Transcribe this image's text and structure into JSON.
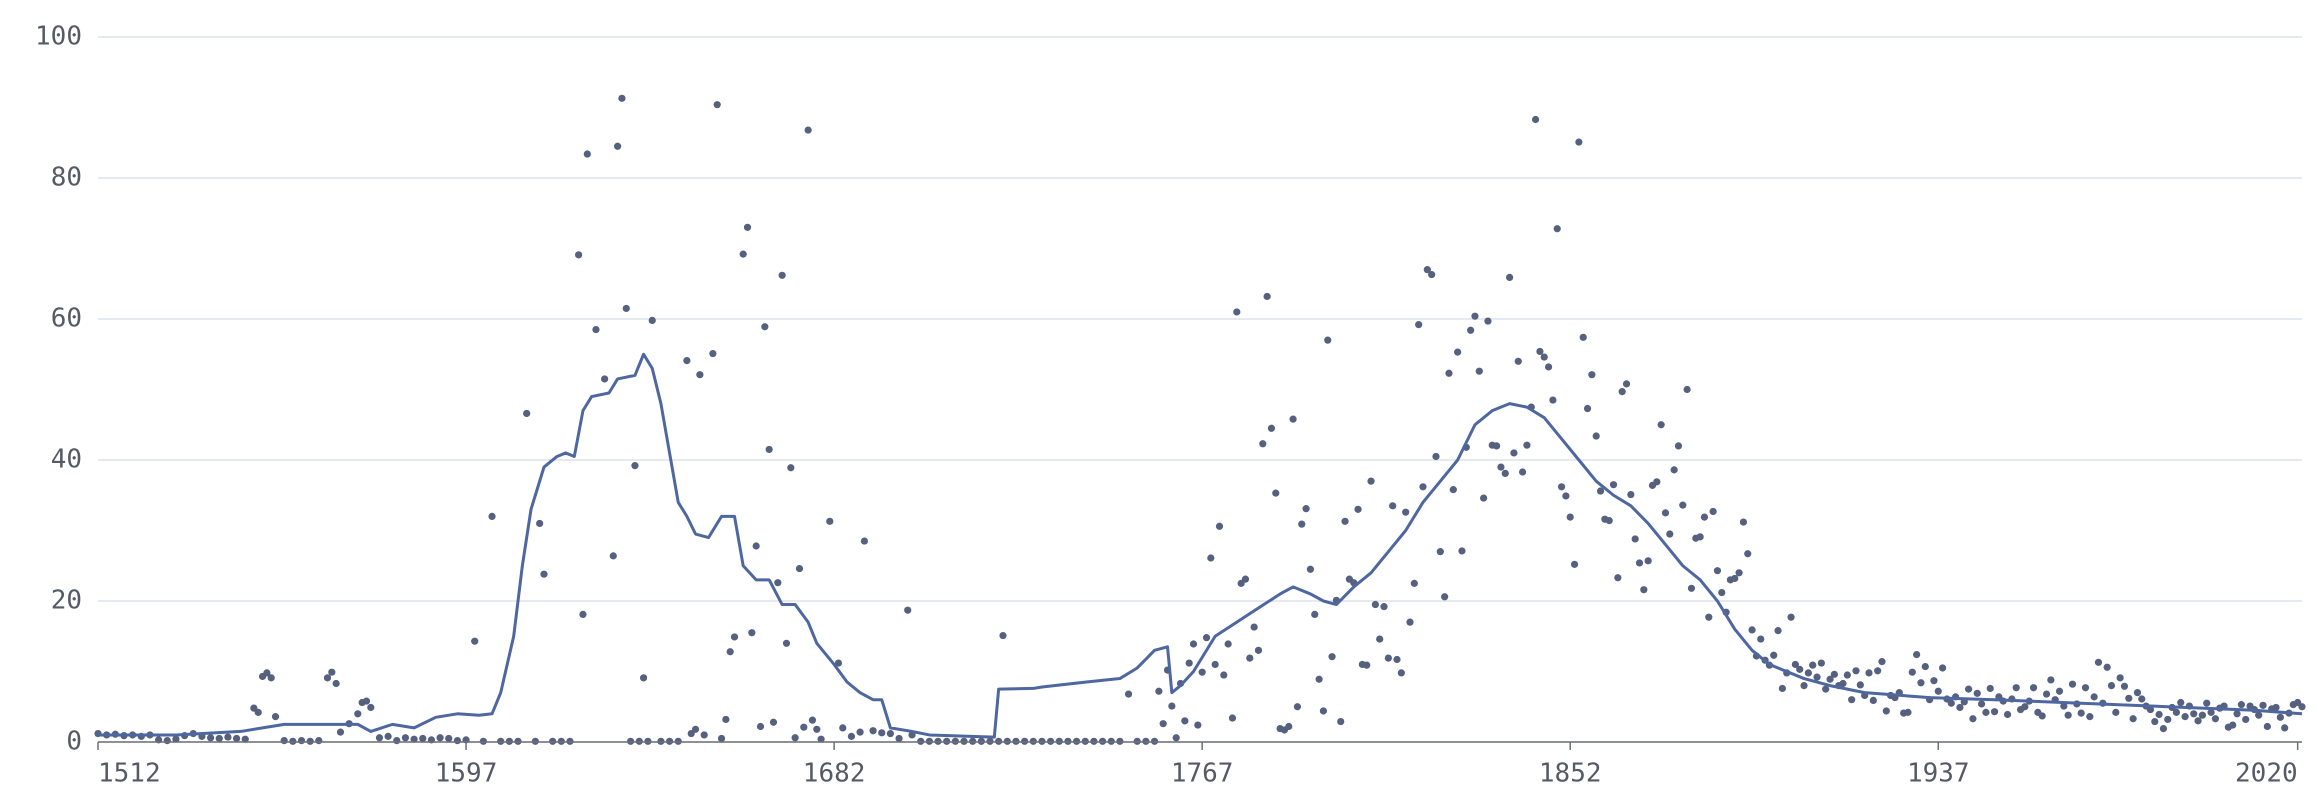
{
  "chart_data": [
    {
      "type": "scatter",
      "color": "#55617f",
      "xlim": [
        1512,
        2021
      ],
      "ylim": [
        0,
        100
      ],
      "xticks": [
        1512,
        1597,
        1682,
        1767,
        1852,
        1937,
        2020
      ],
      "yticks": [
        0,
        20,
        40,
        60,
        80,
        100
      ],
      "grid": true,
      "x": [
        1512,
        1514,
        1516,
        1518,
        1520,
        1522,
        1524,
        1526,
        1528,
        1530,
        1532,
        1534,
        1536,
        1538,
        1540,
        1542,
        1544,
        1546,
        1548,
        1549,
        1550,
        1551,
        1552,
        1553,
        1555,
        1557,
        1559,
        1561,
        1563,
        1565,
        1566,
        1567,
        1568,
        1570,
        1572,
        1573,
        1574,
        1575,
        1577,
        1579,
        1581,
        1583,
        1585,
        1587,
        1589,
        1591,
        1593,
        1595,
        1597,
        1599,
        1601,
        1603,
        1605,
        1607,
        1609,
        1611,
        1613,
        1614,
        1615,
        1617,
        1619,
        1621,
        1623,
        1624,
        1625,
        1627,
        1629,
        1631,
        1632,
        1633,
        1634,
        1635,
        1636,
        1637,
        1638,
        1639,
        1640,
        1642,
        1644,
        1646,
        1648,
        1649,
        1650,
        1651,
        1652,
        1654,
        1655,
        1656,
        1657,
        1658,
        1659,
        1661,
        1662,
        1663,
        1664,
        1665,
        1666,
        1667,
        1668,
        1669,
        1670,
        1671,
        1672,
        1673,
        1674,
        1675,
        1676,
        1677,
        1678,
        1679,
        1681,
        1683,
        1684,
        1686,
        1688,
        1689,
        1691,
        1693,
        1695,
        1697,
        1699,
        1700,
        1702,
        1704,
        1706,
        1708,
        1710,
        1712,
        1714,
        1716,
        1718,
        1720,
        1721,
        1722,
        1724,
        1726,
        1728,
        1730,
        1732,
        1734,
        1736,
        1738,
        1740,
        1742,
        1744,
        1746,
        1748,
        1750,
        1752,
        1754,
        1756,
        1757,
        1758,
        1759,
        1760,
        1761,
        1762,
        1763,
        1764,
        1765,
        1766,
        1767,
        1768,
        1769,
        1770,
        1771,
        1772,
        1773,
        1774,
        1775,
        1776,
        1777,
        1778,
        1779,
        1780,
        1781,
        1782,
        1783,
        1784,
        1785,
        1786,
        1787,
        1788,
        1789,
        1790,
        1791,
        1792,
        1793,
        1794,
        1795,
        1796,
        1797,
        1798,
        1799,
        1800,
        1801,
        1802,
        1803,
        1804,
        1805,
        1806,
        1807,
        1808,
        1809,
        1810,
        1811,
        1812,
        1813,
        1814,
        1815,
        1816,
        1817,
        1818,
        1819,
        1820,
        1821,
        1822,
        1823,
        1824,
        1825,
        1826,
        1827,
        1828,
        1829,
        1830,
        1831,
        1832,
        1833,
        1834,
        1835,
        1836,
        1837,
        1838,
        1839,
        1840,
        1841,
        1842,
        1843,
        1844,
        1845,
        1846,
        1847,
        1848,
        1849,
        1850,
        1851,
        1852,
        1853,
        1854,
        1855,
        1856,
        1857,
        1858,
        1859,
        1860,
        1861,
        1862,
        1863,
        1864,
        1865,
        1866,
        1867,
        1868,
        1869,
        1870,
        1871,
        1872,
        1873,
        1874,
        1875,
        1876,
        1877,
        1878,
        1879,
        1880,
        1881,
        1882,
        1883,
        1884,
        1885,
        1886,
        1887,
        1888,
        1889,
        1890,
        1891,
        1892,
        1893,
        1894,
        1895,
        1896,
        1897,
        1898,
        1899,
        1900,
        1901,
        1902,
        1903,
        1904,
        1905,
        1906,
        1907,
        1908,
        1909,
        1910,
        1911,
        1912,
        1913,
        1914,
        1915,
        1916,
        1917,
        1918,
        1919,
        1920,
        1921,
        1922,
        1923,
        1924,
        1925,
        1926,
        1927,
        1928,
        1929,
        1930,
        1931,
        1932,
        1933,
        1934,
        1935,
        1936,
        1937,
        1938,
        1939,
        1940,
        1941,
        1942,
        1943,
        1944,
        1945,
        1946,
        1947,
        1948,
        1949,
        1950,
        1951,
        1952,
        1953,
        1954,
        1955,
        1956,
        1957,
        1958,
        1959,
        1960,
        1961,
        1962,
        1963,
        1964,
        1965,
        1966,
        1967,
        1968,
        1969,
        1970,
        1971,
        1972,
        1973,
        1974,
        1975,
        1976,
        1977,
        1978,
        1979,
        1980,
        1981,
        1982,
        1983,
        1984,
        1985,
        1986,
        1987,
        1988,
        1989,
        1990,
        1991,
        1992,
        1993,
        1994,
        1995,
        1996,
        1997,
        1998,
        1999,
        2000,
        2001,
        2002,
        2003,
        2004,
        2005,
        2006,
        2007,
        2008,
        2009,
        2010,
        2011,
        2012,
        2013,
        2014,
        2015,
        2016,
        2017,
        2018,
        2019,
        2020,
        2021
      ],
      "values": [
        1.2,
        1.0,
        1.1,
        0.9,
        1.0,
        0.8,
        1.0,
        0.3,
        0.2,
        0.4,
        0.9,
        1.2,
        0.8,
        0.6,
        0.5,
        0.7,
        0.5,
        0.4,
        4.8,
        4.2,
        9.3,
        9.8,
        9.1,
        3.6,
        0.2,
        0.1,
        0.2,
        0.1,
        0.2,
        9.1,
        9.9,
        8.3,
        1.4,
        2.6,
        4.0,
        5.6,
        5.8,
        4.9,
        0.6,
        0.8,
        0.2,
        0.6,
        0.4,
        0.5,
        0.3,
        0.6,
        0.5,
        0.2,
        0.3,
        14.3,
        0.1,
        32.0,
        0.1,
        0.1,
        0.1,
        46.6,
        0.1,
        31.0,
        23.8,
        0.1,
        0.1,
        0.1,
        69.1,
        18.1,
        83.4,
        58.5,
        51.5,
        26.4,
        84.5,
        91.3,
        61.5,
        0.1,
        39.2,
        0.1,
        9.1,
        0.1,
        59.8,
        0.1,
        0.1,
        0.1,
        54.1,
        1.2,
        1.8,
        52.1,
        1.0,
        55.1,
        90.4,
        0.5,
        3.2,
        12.8,
        14.9,
        69.2,
        73.0,
        15.5,
        27.8,
        2.2,
        58.9,
        41.5,
        2.8,
        22.6,
        66.2,
        14.0,
        38.9,
        0.6,
        24.6,
        2.1,
        86.8,
        3.1,
        1.8,
        0.4,
        31.3,
        11.2,
        2.0,
        0.8,
        1.4,
        28.5,
        1.6,
        1.3,
        1.2,
        0.5,
        18.7,
        1.0,
        0.1,
        0.1,
        0.1,
        0.1,
        0.1,
        0.1,
        0.1,
        0.1,
        0.1,
        0.1,
        15.1,
        0.1,
        0.1,
        0.1,
        0.1,
        0.1,
        0.1,
        0.1,
        0.1,
        0.1,
        0.1,
        0.1,
        0.1,
        0.1,
        0.1,
        6.8,
        0.1,
        0.1,
        0.1,
        7.2,
        2.6,
        10.2,
        5.1,
        0.6,
        8.3,
        3.0,
        11.2,
        13.9,
        2.4,
        9.9,
        14.8,
        26.1,
        11.0,
        30.6,
        9.5,
        13.9,
        3.4,
        61.0,
        22.5,
        23.1,
        11.9,
        16.3,
        13.0,
        42.3,
        63.2,
        44.5,
        35.3,
        1.9,
        1.7,
        2.2,
        45.8,
        5.0,
        30.9,
        33.1,
        24.5,
        18.1,
        8.9,
        4.4,
        57.0,
        12.1,
        20.1,
        2.9,
        31.3,
        23.1,
        22.6,
        33.0,
        11.0,
        10.9,
        37.0,
        19.5,
        14.6,
        19.2,
        11.9,
        33.5,
        11.7,
        9.8,
        32.6,
        17.0,
        22.5,
        59.2,
        36.2,
        67.0,
        66.3,
        40.5,
        27.0,
        20.6,
        52.3,
        35.8,
        55.3,
        27.1,
        41.8,
        58.4,
        60.4,
        52.6,
        34.6,
        59.7,
        42.1,
        42.0,
        39.0,
        38.1,
        65.9,
        41.0,
        54.0,
        38.3,
        42.1,
        47.5,
        88.3,
        55.4,
        54.6,
        53.2,
        48.5,
        72.8,
        36.2,
        34.9,
        31.9,
        25.2,
        85.1,
        57.4,
        47.3,
        52.1,
        43.4,
        35.6,
        31.6,
        31.4,
        36.5,
        23.3,
        49.7,
        50.8,
        35.1,
        28.8,
        25.4,
        21.6,
        25.7,
        36.4,
        36.9,
        45.0,
        32.5,
        29.5,
        38.6,
        42.0,
        33.6,
        50.0,
        21.8,
        28.9,
        29.1,
        31.9,
        17.7,
        32.7,
        24.3,
        21.2,
        18.4,
        23.0,
        23.2,
        24.0,
        31.2,
        26.7,
        15.9,
        12.2,
        14.6,
        11.6,
        10.9,
        12.3,
        15.8,
        7.6,
        9.8,
        17.7,
        11.0,
        10.3,
        8.0,
        9.8,
        10.9,
        9.2,
        11.2,
        7.5,
        8.9,
        9.6,
        8.0,
        8.3,
        9.5,
        6.0,
        10.1,
        8.1,
        6.6,
        9.8,
        5.9,
        10.1,
        11.4,
        4.4,
        6.6,
        6.3,
        7.0,
        4.1,
        4.2,
        9.9,
        12.4,
        8.4,
        10.7,
        6.0,
        8.7,
        7.2,
        10.5,
        6.1,
        5.5,
        6.4,
        4.9,
        5.7,
        7.5,
        3.3,
        6.9,
        5.4,
        4.2,
        7.6,
        4.3,
        6.4,
        5.8,
        3.9,
        6.1,
        7.7,
        4.6,
        5.0,
        5.8,
        7.7,
        4.2,
        3.7,
        6.8,
        8.8,
        6.0,
        7.2,
        5.1,
        3.8,
        8.2,
        5.4,
        4.1,
        7.7,
        3.6,
        6.4,
        11.3,
        5.5,
        10.6,
        8.0,
        4.2,
        9.1,
        7.9,
        6.2,
        3.3,
        7.0,
        6.1,
        5.1,
        4.6,
        2.9,
        3.9,
        1.9,
        3.2,
        4.9,
        4.2,
        5.6,
        3.6,
        5.1,
        4.0,
        3.0,
        3.8,
        5.5,
        4.2,
        3.3,
        4.8,
        5.1,
        2.1,
        2.4,
        4.0,
        5.3,
        3.2,
        5.1,
        4.6,
        3.8,
        5.2,
        2.2,
        4.7,
        4.9,
        3.5,
        2.0,
        4.1,
        5.3,
        5.6,
        5.0
      ]
    },
    {
      "type": "line",
      "color": "#4e67a0",
      "x": [
        1512,
        1530,
        1545,
        1550,
        1555,
        1572,
        1575,
        1580,
        1585,
        1590,
        1595,
        1600,
        1603,
        1605,
        1608,
        1610,
        1612,
        1615,
        1618,
        1620,
        1622,
        1624,
        1626,
        1630,
        1632,
        1636,
        1638,
        1640,
        1642,
        1644,
        1646,
        1648,
        1650,
        1653,
        1656,
        1659,
        1661,
        1664,
        1667,
        1670,
        1673,
        1676,
        1678,
        1682,
        1685,
        1688,
        1691,
        1693,
        1695,
        1700,
        1704,
        1719,
        1720,
        1728,
        1730,
        1740,
        1748,
        1752,
        1756,
        1759,
        1760,
        1762,
        1765,
        1770,
        1775,
        1780,
        1785,
        1788,
        1792,
        1795,
        1798,
        1802,
        1806,
        1810,
        1814,
        1818,
        1822,
        1826,
        1830,
        1834,
        1838,
        1842,
        1846,
        1850,
        1854,
        1858,
        1862,
        1866,
        1870,
        1874,
        1878,
        1882,
        1886,
        1890,
        1894,
        1898,
        1902,
        1906,
        1912,
        1920,
        1935,
        1950,
        1970,
        1990,
        2010,
        2021
      ],
      "values": [
        1,
        1,
        1.5,
        2,
        2.5,
        2.5,
        1.5,
        2.5,
        2,
        3.5,
        4,
        3.8,
        4,
        7,
        15,
        25,
        33,
        39,
        40.5,
        41,
        40.5,
        47,
        49,
        49.5,
        51.5,
        52,
        55,
        53,
        48,
        41,
        34,
        32,
        29.5,
        29,
        32,
        32,
        25,
        23,
        23,
        19.5,
        19.5,
        17,
        14,
        11,
        8.5,
        7,
        6,
        6,
        2,
        1.5,
        1,
        0.7,
        7.5,
        7.6,
        7.8,
        8.5,
        9,
        10.5,
        13,
        13.5,
        7,
        8,
        10,
        15,
        17,
        19,
        21,
        22,
        21,
        20,
        19.5,
        22,
        24,
        27,
        30,
        34,
        37,
        40,
        45,
        47,
        48,
        47.5,
        46,
        43,
        40,
        37,
        35,
        33.5,
        31,
        28,
        25,
        23,
        20,
        16,
        13,
        11,
        10,
        9,
        8,
        7,
        6.3,
        6,
        5.5,
        5,
        4.5,
        4
      ]
    }
  ]
}
